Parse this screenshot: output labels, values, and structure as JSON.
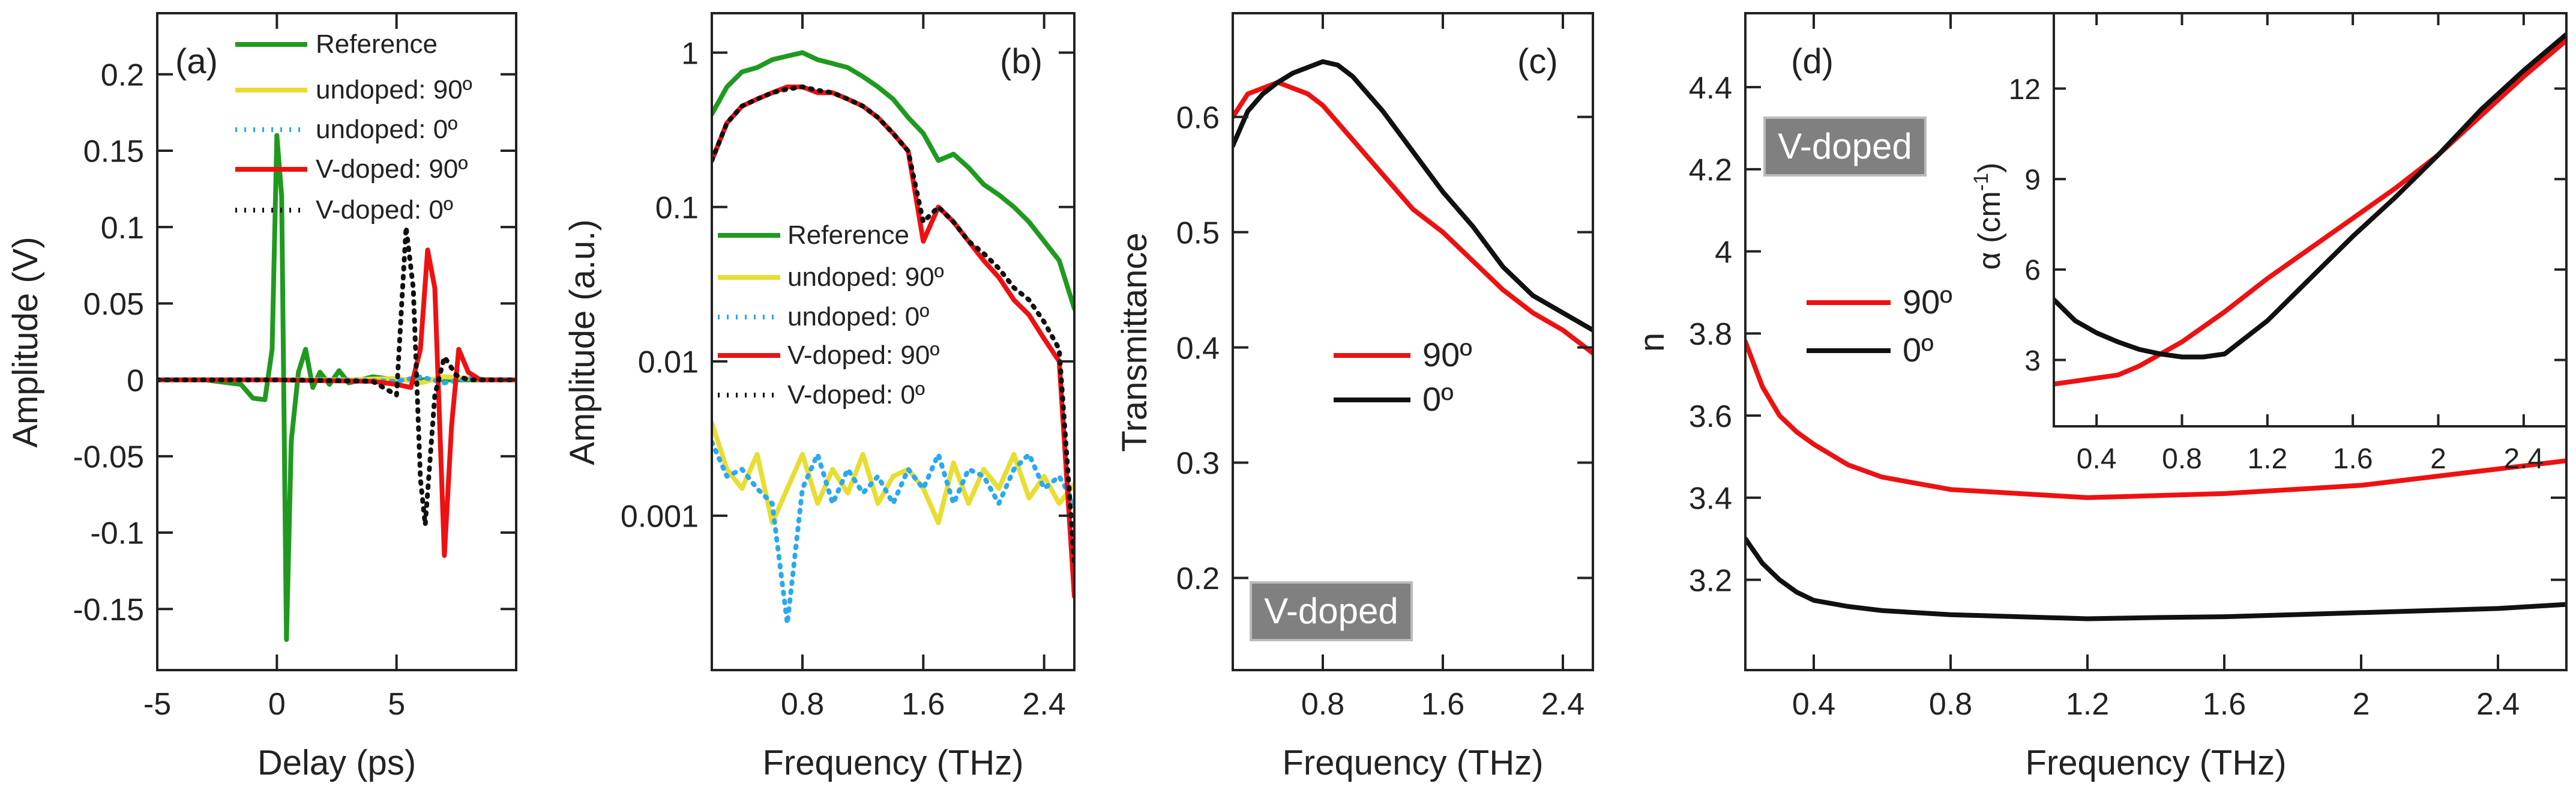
{
  "colors": {
    "reference": "#1f9a1f",
    "undoped90": "#e8dd33",
    "undoped0": "#2aa8f0",
    "vdoped90": "#ee1111",
    "vdoped0": "#111111",
    "box_fill": "#808080"
  },
  "chart_data": [
    {
      "type": "line",
      "panel": "(a)",
      "xlabel": "Delay (ps)",
      "ylabel": "Amplitude (V)",
      "xlim": [
        -5,
        10
      ],
      "ylim": [
        -0.19,
        0.24
      ],
      "xticks": [
        -5,
        0,
        5
      ],
      "xtick_labels": [
        "-5",
        "0",
        "5"
      ],
      "yticks": [
        -0.15,
        -0.1,
        -0.05,
        0,
        0.05,
        0.1,
        0.15,
        0.2
      ],
      "ytick_labels": [
        "-0.15",
        "-0.1",
        "-0.05",
        "0",
        "0.05",
        "0.1",
        "0.15",
        "0.2"
      ],
      "legend": [
        "Reference",
        "undoped: 90º",
        "undoped: 0º",
        "V-doped: 90º",
        "V-doped: 0º"
      ],
      "legend_position": "top-right",
      "series": [
        {
          "name": "Reference",
          "color_key": "reference",
          "style": "solid",
          "x": [
            -5,
            -3,
            -1.5,
            -1,
            -0.5,
            -0.2,
            0,
            0.2,
            0.4,
            0.6,
            0.9,
            1.2,
            1.5,
            1.8,
            2.2,
            2.6,
            3,
            4,
            5,
            6,
            8,
            10
          ],
          "y": [
            0,
            0,
            -0.003,
            -0.012,
            -0.013,
            0.02,
            0.16,
            0.12,
            -0.17,
            -0.04,
            0.005,
            0.02,
            -0.005,
            0.005,
            -0.003,
            0.006,
            -0.002,
            0.002,
            0,
            0,
            0,
            0
          ]
        },
        {
          "name": "undoped: 90º",
          "color_key": "undoped90",
          "style": "solid",
          "x": [
            -5,
            0,
            3,
            5,
            6,
            7,
            8,
            9,
            10
          ],
          "y": [
            0,
            0,
            0,
            0.001,
            -0.002,
            0.002,
            0.001,
            0,
            0
          ]
        },
        {
          "name": "undoped: 0º",
          "color_key": "undoped0",
          "style": "dotted",
          "x": [
            -5,
            0,
            3,
            5,
            6,
            7,
            8,
            9,
            10
          ],
          "y": [
            0,
            0,
            0,
            -0.001,
            0.002,
            -0.002,
            0.001,
            0,
            0
          ]
        },
        {
          "name": "V-doped: 90º",
          "color_key": "vdoped90",
          "style": "solid",
          "x": [
            -5,
            0,
            4,
            5,
            5.6,
            6,
            6.3,
            6.6,
            7,
            7.3,
            7.6,
            8,
            8.5,
            10
          ],
          "y": [
            0,
            0,
            -0.001,
            -0.003,
            -0.005,
            0.02,
            0.085,
            0.06,
            -0.115,
            -0.03,
            0.02,
            0.005,
            0,
            0
          ]
        },
        {
          "name": "V-doped: 0º",
          "color_key": "vdoped0",
          "style": "dotted",
          "x": [
            -5,
            0,
            4,
            5,
            5.4,
            5.7,
            6,
            6.2,
            6.6,
            7,
            7.5,
            8,
            10
          ],
          "y": [
            0,
            0,
            -0.001,
            -0.01,
            0.1,
            0.06,
            -0.065,
            -0.095,
            -0.01,
            0.015,
            0.003,
            0,
            0
          ]
        }
      ]
    },
    {
      "type": "line",
      "panel": "(b)",
      "xlabel": "Frequency (THz)",
      "ylabel": "Amplitude (a.u.)",
      "yscale": "log",
      "xlim": [
        0.2,
        2.6
      ],
      "ylim": [
        0.0001,
        1.8
      ],
      "xticks": [
        0.8,
        1.6,
        2.4
      ],
      "xtick_labels": [
        "0.8",
        "1.6",
        "2.4"
      ],
      "yticks": [
        0.001,
        0.01,
        0.1,
        1
      ],
      "ytick_labels": [
        "0.001",
        "0.01",
        "0.1",
        "1"
      ],
      "legend": [
        "Reference",
        "undoped: 90º",
        "undoped: 0º",
        "V-doped: 90º",
        "V-doped: 0º"
      ],
      "legend_position": "center-right",
      "series": [
        {
          "name": "Reference",
          "color_key": "reference",
          "style": "solid",
          "x": [
            0.2,
            0.3,
            0.4,
            0.5,
            0.6,
            0.7,
            0.8,
            0.9,
            1.0,
            1.1,
            1.2,
            1.3,
            1.4,
            1.5,
            1.6,
            1.7,
            1.8,
            1.9,
            2.0,
            2.1,
            2.2,
            2.3,
            2.4,
            2.5,
            2.6
          ],
          "y": [
            0.4,
            0.6,
            0.75,
            0.8,
            0.9,
            0.95,
            1.0,
            0.9,
            0.85,
            0.8,
            0.7,
            0.6,
            0.5,
            0.38,
            0.3,
            0.2,
            0.22,
            0.18,
            0.14,
            0.12,
            0.1,
            0.08,
            0.06,
            0.045,
            0.022
          ]
        },
        {
          "name": "undoped: 90º",
          "color_key": "undoped90",
          "style": "solid",
          "x": [
            0.2,
            0.3,
            0.4,
            0.5,
            0.6,
            0.7,
            0.8,
            0.9,
            1.0,
            1.1,
            1.2,
            1.3,
            1.4,
            1.5,
            1.6,
            1.7,
            1.8,
            1.9,
            2.0,
            2.1,
            2.2,
            2.3,
            2.4,
            2.5,
            2.6
          ],
          "y": [
            0.004,
            0.002,
            0.0015,
            0.0025,
            0.0009,
            0.0015,
            0.0025,
            0.0012,
            0.002,
            0.0014,
            0.0025,
            0.0012,
            0.0018,
            0.002,
            0.0015,
            0.0009,
            0.0022,
            0.0012,
            0.002,
            0.0015,
            0.0025,
            0.0013,
            0.0018,
            0.0012,
            0.0016
          ]
        },
        {
          "name": "undoped: 0º",
          "color_key": "undoped0",
          "style": "dotted",
          "x": [
            0.2,
            0.3,
            0.4,
            0.5,
            0.6,
            0.7,
            0.8,
            0.9,
            1.0,
            1.1,
            1.2,
            1.3,
            1.4,
            1.5,
            1.6,
            1.7,
            1.8,
            1.9,
            2.0,
            2.1,
            2.2,
            2.3,
            2.4,
            2.5,
            2.6
          ],
          "y": [
            0.003,
            0.0018,
            0.002,
            0.0015,
            0.0012,
            0.0002,
            0.0015,
            0.0025,
            0.0012,
            0.002,
            0.0014,
            0.0018,
            0.0012,
            0.002,
            0.0015,
            0.0025,
            0.0012,
            0.002,
            0.0018,
            0.0012,
            0.002,
            0.0025,
            0.0015,
            0.0018,
            0.0012
          ]
        },
        {
          "name": "V-doped: 90º",
          "color_key": "vdoped90",
          "style": "solid",
          "x": [
            0.2,
            0.3,
            0.4,
            0.5,
            0.6,
            0.7,
            0.8,
            0.9,
            1.0,
            1.1,
            1.2,
            1.3,
            1.4,
            1.5,
            1.6,
            1.7,
            1.8,
            1.9,
            2.0,
            2.1,
            2.2,
            2.3,
            2.4,
            2.5,
            2.6
          ],
          "y": [
            0.2,
            0.35,
            0.45,
            0.5,
            0.55,
            0.6,
            0.6,
            0.55,
            0.55,
            0.5,
            0.45,
            0.38,
            0.3,
            0.23,
            0.06,
            0.1,
            0.08,
            0.06,
            0.045,
            0.035,
            0.025,
            0.02,
            0.014,
            0.01,
            0.0003
          ]
        },
        {
          "name": "V-doped: 0º",
          "color_key": "vdoped0",
          "style": "dotted",
          "x": [
            0.2,
            0.3,
            0.4,
            0.5,
            0.6,
            0.7,
            0.8,
            0.9,
            1.0,
            1.1,
            1.2,
            1.3,
            1.4,
            1.5,
            1.6,
            1.7,
            1.8,
            1.9,
            2.0,
            2.1,
            2.2,
            2.3,
            2.4,
            2.5,
            2.6
          ],
          "y": [
            0.2,
            0.35,
            0.45,
            0.5,
            0.55,
            0.58,
            0.6,
            0.57,
            0.55,
            0.5,
            0.45,
            0.38,
            0.3,
            0.23,
            0.08,
            0.1,
            0.08,
            0.06,
            0.05,
            0.04,
            0.03,
            0.025,
            0.018,
            0.012,
            0.0005
          ]
        }
      ]
    },
    {
      "type": "line",
      "panel": "(c)",
      "xlabel": "Frequency (THz)",
      "ylabel": "Transmittance",
      "xlim": [
        0.2,
        2.6
      ],
      "ylim": [
        0.12,
        0.69
      ],
      "xticks": [
        0.8,
        1.6,
        2.4
      ],
      "xtick_labels": [
        "0.8",
        "1.6",
        "2.4"
      ],
      "yticks": [
        0.2,
        0.3,
        0.4,
        0.5,
        0.6
      ],
      "ytick_labels": [
        "0.2",
        "0.3",
        "0.4",
        "0.5",
        "0.6"
      ],
      "legend": [
        "90º",
        "0º"
      ],
      "legend_position": "center",
      "box_label": "V-doped",
      "series": [
        {
          "name": "90º",
          "color_key": "vdoped90",
          "style": "solid",
          "x": [
            0.2,
            0.3,
            0.4,
            0.5,
            0.6,
            0.7,
            0.8,
            1.0,
            1.2,
            1.4,
            1.6,
            1.8,
            2.0,
            2.2,
            2.4,
            2.6
          ],
          "y": [
            0.6,
            0.62,
            0.625,
            0.63,
            0.625,
            0.62,
            0.61,
            0.58,
            0.55,
            0.52,
            0.5,
            0.475,
            0.45,
            0.43,
            0.415,
            0.395
          ]
        },
        {
          "name": "0º",
          "color_key": "vdoped0",
          "style": "solid",
          "x": [
            0.2,
            0.3,
            0.4,
            0.5,
            0.6,
            0.7,
            0.8,
            0.9,
            1.0,
            1.2,
            1.4,
            1.6,
            1.8,
            2.0,
            2.2,
            2.4,
            2.6
          ],
          "y": [
            0.575,
            0.605,
            0.62,
            0.63,
            0.638,
            0.643,
            0.648,
            0.645,
            0.635,
            0.605,
            0.57,
            0.535,
            0.505,
            0.47,
            0.445,
            0.43,
            0.415
          ]
        }
      ]
    },
    {
      "type": "line",
      "panel": "(d)",
      "xlabel": "Frequency (THz)",
      "ylabel": "n",
      "xlim": [
        0.2,
        2.6
      ],
      "ylim": [
        2.98,
        4.58
      ],
      "xticks": [
        0.4,
        0.8,
        1.2,
        1.6,
        2.0,
        2.4
      ],
      "xtick_labels": [
        "0.4",
        "0.8",
        "1.2",
        "1.6",
        "2",
        "2.4"
      ],
      "yticks": [
        3.2,
        3.4,
        3.6,
        3.8,
        4.0,
        4.2,
        4.4
      ],
      "ytick_labels": [
        "3.2",
        "3.4",
        "3.6",
        "3.8",
        "4",
        "4.2",
        "4.4"
      ],
      "legend": [
        "90º",
        "0º"
      ],
      "legend_position": "left",
      "box_label": "V-doped",
      "series": [
        {
          "name": "90º",
          "color_key": "vdoped90",
          "style": "solid",
          "x": [
            0.2,
            0.25,
            0.3,
            0.35,
            0.4,
            0.5,
            0.6,
            0.8,
            1.0,
            1.2,
            1.4,
            1.6,
            1.8,
            2.0,
            2.2,
            2.4,
            2.6
          ],
          "y": [
            3.78,
            3.67,
            3.6,
            3.56,
            3.53,
            3.48,
            3.45,
            3.42,
            3.41,
            3.4,
            3.405,
            3.41,
            3.42,
            3.43,
            3.45,
            3.47,
            3.49
          ]
        },
        {
          "name": "0º",
          "color_key": "vdoped0",
          "style": "solid",
          "x": [
            0.2,
            0.25,
            0.3,
            0.35,
            0.4,
            0.5,
            0.6,
            0.8,
            1.0,
            1.2,
            1.4,
            1.6,
            1.8,
            2.0,
            2.2,
            2.4,
            2.6
          ],
          "y": [
            3.3,
            3.24,
            3.2,
            3.17,
            3.15,
            3.135,
            3.125,
            3.115,
            3.11,
            3.105,
            3.108,
            3.11,
            3.115,
            3.12,
            3.125,
            3.13,
            3.14
          ]
        }
      ],
      "inset": {
        "type": "line",
        "xlabel": "",
        "ylabel": "α (cm⁻¹)",
        "ylabel_text": "α (cm",
        "ylabel_sup": "-1",
        "ylabel_close": ")",
        "xlim": [
          0.2,
          2.6
        ],
        "ylim": [
          0.8,
          14.5
        ],
        "xticks": [
          0.4,
          0.8,
          1.2,
          1.6,
          2.0,
          2.4
        ],
        "xtick_labels": [
          "0.4",
          "0.8",
          "1.2",
          "1.6",
          "2",
          "2.4"
        ],
        "yticks": [
          3,
          6,
          9,
          12
        ],
        "ytick_labels": [
          "3",
          "6",
          "9",
          "12"
        ],
        "series": [
          {
            "name": "90º",
            "color_key": "vdoped90",
            "style": "solid",
            "x": [
              0.2,
              0.3,
              0.4,
              0.5,
              0.6,
              0.7,
              0.8,
              1.0,
              1.2,
              1.4,
              1.6,
              1.8,
              2.0,
              2.2,
              2.4,
              2.6
            ],
            "y": [
              2.2,
              2.3,
              2.4,
              2.5,
              2.8,
              3.2,
              3.6,
              4.6,
              5.7,
              6.7,
              7.7,
              8.7,
              9.8,
              11.1,
              12.4,
              13.6
            ]
          },
          {
            "name": "0º",
            "color_key": "vdoped0",
            "style": "solid",
            "x": [
              0.2,
              0.3,
              0.4,
              0.5,
              0.6,
              0.7,
              0.8,
              0.9,
              1.0,
              1.2,
              1.4,
              1.6,
              1.8,
              2.0,
              2.2,
              2.4,
              2.6
            ],
            "y": [
              5.0,
              4.3,
              3.9,
              3.6,
              3.35,
              3.2,
              3.1,
              3.1,
              3.2,
              4.3,
              5.7,
              7.1,
              8.4,
              9.8,
              11.3,
              12.6,
              13.8
            ]
          }
        ]
      }
    }
  ]
}
